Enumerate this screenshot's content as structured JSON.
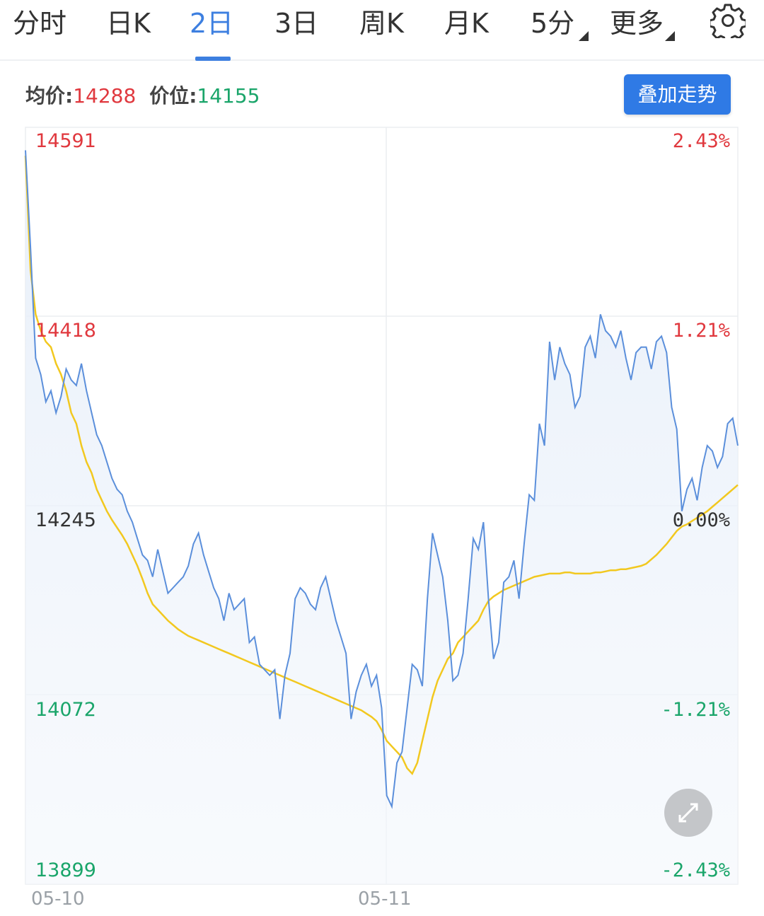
{
  "tabs": [
    {
      "label": "分时",
      "active": false
    },
    {
      "label": "日K",
      "active": false
    },
    {
      "label": "2日",
      "active": true
    },
    {
      "label": "3日",
      "active": false
    },
    {
      "label": "周K",
      "active": false
    },
    {
      "label": "月K",
      "active": false
    },
    {
      "label": "5分",
      "active": false,
      "dropdown": true
    },
    {
      "label": "更多",
      "active": false,
      "dropdown": true
    }
  ],
  "settings_icon": "gear-icon",
  "info": {
    "avg_label": "均价:",
    "avg_value": "14288",
    "price_label": "价位:",
    "price_value": "14155"
  },
  "overlay_button": "叠加走势",
  "expand_icon": "expand-arrows-icon",
  "colors": {
    "accent": "#3d7fe0",
    "up": "#e0383e",
    "down": "#1aa56a",
    "price_line": "#5b8fdb",
    "avg_line": "#f2c81f"
  },
  "chart_data": {
    "type": "line",
    "y_labels_left": [
      "14591",
      "14418",
      "14245",
      "14072",
      "13899"
    ],
    "y_labels_right": [
      "2.43%",
      "1.21%",
      "0.00%",
      "-1.21%",
      "-2.43%"
    ],
    "x_labels": [
      "05-10",
      "05-11"
    ],
    "ylim": [
      13899,
      14591
    ],
    "base": 14245,
    "series": [
      {
        "key": "price",
        "values": [
          14570,
          14480,
          14380,
          14365,
          14340,
          14350,
          14330,
          14345,
          14370,
          14360,
          14355,
          14375,
          14350,
          14330,
          14310,
          14300,
          14285,
          14270,
          14260,
          14255,
          14240,
          14230,
          14215,
          14200,
          14195,
          14180,
          14205,
          14185,
          14165,
          14170,
          14175,
          14180,
          14190,
          14210,
          14220,
          14200,
          14185,
          14170,
          14160,
          14140,
          14165,
          14150,
          14155,
          14160,
          14120,
          14125,
          14100,
          14095,
          14090,
          14095,
          14050,
          14090,
          14110,
          14160,
          14170,
          14165,
          14155,
          14150,
          14170,
          14180,
          14160,
          14140,
          14125,
          14110,
          14050,
          14075,
          14090,
          14100,
          14080,
          14090,
          14060,
          13980,
          13970,
          14010,
          14020,
          14060,
          14100,
          14095,
          14080,
          14160,
          14220,
          14200,
          14180,
          14140,
          14085,
          14090,
          14110,
          14160,
          14215,
          14205,
          14230,
          14160,
          14105,
          14120,
          14175,
          14180,
          14195,
          14160,
          14210,
          14255,
          14250,
          14320,
          14300,
          14395,
          14360,
          14390,
          14375,
          14365,
          14335,
          14345,
          14390,
          14400,
          14380,
          14420,
          14405,
          14400,
          14390,
          14405,
          14380,
          14360,
          14385,
          14390,
          14390,
          14370,
          14395,
          14400,
          14385,
          14335,
          14315,
          14240,
          14260,
          14270,
          14250,
          14280,
          14300,
          14295,
          14280,
          14290,
          14320,
          14325,
          14300
        ]
      },
      {
        "key": "average",
        "values": [
          14565,
          14460,
          14420,
          14405,
          14395,
          14390,
          14375,
          14365,
          14350,
          14330,
          14320,
          14300,
          14285,
          14275,
          14260,
          14250,
          14240,
          14232,
          14225,
          14218,
          14210,
          14200,
          14190,
          14178,
          14165,
          14155,
          14150,
          14145,
          14140,
          14136,
          14132,
          14129,
          14126,
          14124,
          14122,
          14120,
          14118,
          14116,
          14114,
          14112,
          14110,
          14108,
          14106,
          14104,
          14102,
          14100,
          14098,
          14096,
          14094,
          14092,
          14090,
          14088,
          14086,
          14084,
          14082,
          14080,
          14078,
          14076,
          14074,
          14072,
          14070,
          14068,
          14066,
          14064,
          14062,
          14060,
          14058,
          14055,
          14052,
          14048,
          14040,
          14030,
          14025,
          14020,
          14015,
          14005,
          14000,
          14010,
          14030,
          14050,
          14070,
          14085,
          14095,
          14105,
          14110,
          14120,
          14125,
          14130,
          14135,
          14140,
          14150,
          14158,
          14162,
          14165,
          14168,
          14170,
          14172,
          14174,
          14176,
          14178,
          14180,
          14181,
          14182,
          14183,
          14183,
          14183,
          14184,
          14184,
          14183,
          14183,
          14183,
          14183,
          14184,
          14184,
          14185,
          14186,
          14186,
          14187,
          14187,
          14188,
          14189,
          14190,
          14192,
          14196,
          14200,
          14205,
          14210,
          14216,
          14222,
          14226,
          14228,
          14231,
          14234,
          14237,
          14240,
          14244,
          14248,
          14252,
          14256,
          14260,
          14264
        ]
      }
    ]
  }
}
